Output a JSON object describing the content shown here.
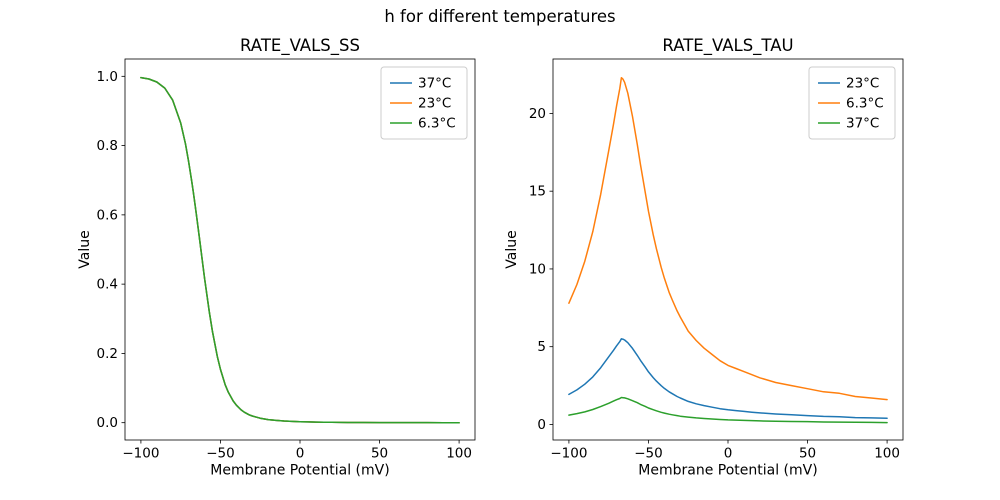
{
  "figure": {
    "suptitle": "h for different temperatures",
    "background": "#ffffff"
  },
  "colors": {
    "series_blue": "#1f77b4",
    "series_orange": "#ff7f0e",
    "series_green": "#2ca02c",
    "axis": "#000000",
    "legend_border": "#cccccc"
  },
  "chart_data": [
    {
      "type": "line",
      "title": "RATE_VALS_SS",
      "xlabel": "Membrane Potential (mV)",
      "ylabel": "Value",
      "xlim": [
        -110,
        110
      ],
      "ylim": [
        -0.05,
        1.05
      ],
      "xticks": [
        -100,
        -50,
        0,
        50,
        100
      ],
      "xtick_labels": [
        "−100",
        "−50",
        "0",
        "50",
        "100"
      ],
      "yticks": [
        0.0,
        0.2,
        0.4,
        0.6,
        0.8,
        1.0
      ],
      "ytick_labels": [
        "0.0",
        "0.2",
        "0.4",
        "0.6",
        "0.8",
        "1.0"
      ],
      "grid": false,
      "legend_position": "upper right",
      "overlap_note": "All three temperature curves coincide exactly; the last-drawn green (6.3°C) curve is the visible one.",
      "x": [
        -100,
        -95,
        -90,
        -85,
        -80,
        -75,
        -72,
        -70,
        -68,
        -67,
        -66,
        -65,
        -63,
        -60,
        -57,
        -55,
        -52,
        -50,
        -47,
        -45,
        -42,
        -40,
        -37,
        -35,
        -32,
        -30,
        -25,
        -20,
        -15,
        -10,
        -5,
        0,
        5,
        10,
        15,
        20,
        30,
        40,
        50,
        60,
        70,
        80,
        90,
        100
      ],
      "series": [
        {
          "name": "37°C",
          "color": "#1f77b4",
          "values": [
            0.9963,
            0.9922,
            0.9836,
            0.966,
            0.931,
            0.8652,
            0.8046,
            0.7541,
            0.6957,
            0.6639,
            0.6306,
            0.5961,
            0.5249,
            0.4182,
            0.3199,
            0.2627,
            0.1913,
            0.1534,
            0.1095,
            0.0874,
            0.0626,
            0.0504,
            0.0369,
            0.0303,
            0.0229,
            0.0192,
            0.0128,
            0.009,
            0.0065,
            0.0048,
            0.0037,
            0.0028,
            0.0022,
            0.0017,
            0.0013,
            0.001,
            0.0006,
            0.0004,
            0.0002,
            0.0001,
            0.0001,
            0.0001,
            0.0,
            0.0
          ]
        },
        {
          "name": "23°C",
          "color": "#ff7f0e",
          "values": [
            0.9963,
            0.9922,
            0.9836,
            0.966,
            0.931,
            0.8652,
            0.8046,
            0.7541,
            0.6957,
            0.6639,
            0.6306,
            0.5961,
            0.5249,
            0.4182,
            0.3199,
            0.2627,
            0.1913,
            0.1534,
            0.1095,
            0.0874,
            0.0626,
            0.0504,
            0.0369,
            0.0303,
            0.0229,
            0.0192,
            0.0128,
            0.009,
            0.0065,
            0.0048,
            0.0037,
            0.0028,
            0.0022,
            0.0017,
            0.0013,
            0.001,
            0.0006,
            0.0004,
            0.0002,
            0.0001,
            0.0001,
            0.0001,
            0.0,
            0.0
          ]
        },
        {
          "name": "6.3°C",
          "color": "#2ca02c",
          "values": [
            0.9963,
            0.9922,
            0.9836,
            0.966,
            0.931,
            0.8652,
            0.8046,
            0.7541,
            0.6957,
            0.6639,
            0.6306,
            0.5961,
            0.5249,
            0.4182,
            0.3199,
            0.2627,
            0.1913,
            0.1534,
            0.1095,
            0.0874,
            0.0626,
            0.0504,
            0.0369,
            0.0303,
            0.0229,
            0.0192,
            0.0128,
            0.009,
            0.0065,
            0.0048,
            0.0037,
            0.0028,
            0.0022,
            0.0017,
            0.0013,
            0.001,
            0.0006,
            0.0004,
            0.0002,
            0.0001,
            0.0001,
            0.0001,
            0.0,
            0.0
          ]
        }
      ]
    },
    {
      "type": "line",
      "title": "RATE_VALS_TAU",
      "xlabel": "Membrane Potential (mV)",
      "ylabel": "Value",
      "xlim": [
        -110,
        110
      ],
      "ylim": [
        -1.0,
        23.5
      ],
      "xticks": [
        -100,
        -50,
        0,
        50,
        100
      ],
      "xtick_labels": [
        "−100",
        "−50",
        "0",
        "50",
        "100"
      ],
      "yticks": [
        0,
        5,
        10,
        15,
        20
      ],
      "ytick_labels": [
        "0",
        "5",
        "10",
        "15",
        "20"
      ],
      "grid": false,
      "legend_position": "upper right",
      "x": [
        -100,
        -95,
        -90,
        -85,
        -80,
        -75,
        -72,
        -70,
        -68,
        -67,
        -66,
        -65,
        -63,
        -60,
        -57,
        -55,
        -52,
        -50,
        -47,
        -45,
        -42,
        -40,
        -37,
        -35,
        -32,
        -30,
        -25,
        -20,
        -15,
        -10,
        -5,
        0,
        5,
        10,
        15,
        20,
        30,
        40,
        50,
        60,
        70,
        80,
        90,
        100
      ],
      "series": [
        {
          "name": "23°C",
          "color": "#1f77b4",
          "values": [
            1.93,
            2.22,
            2.59,
            3.06,
            3.65,
            4.35,
            4.77,
            5.06,
            5.33,
            5.51,
            5.48,
            5.43,
            5.26,
            4.89,
            4.44,
            4.12,
            3.68,
            3.38,
            3.01,
            2.79,
            2.49,
            2.32,
            2.1,
            1.98,
            1.8,
            1.7,
            1.48,
            1.33,
            1.21,
            1.11,
            1.01,
            0.94,
            0.89,
            0.84,
            0.79,
            0.74,
            0.67,
            0.62,
            0.57,
            0.52,
            0.49,
            0.44,
            0.42,
            0.4
          ]
        },
        {
          "name": "6.3°C",
          "color": "#ff7f0e",
          "values": [
            7.8,
            9.0,
            10.5,
            12.4,
            14.8,
            17.6,
            19.3,
            20.5,
            21.6,
            22.3,
            22.2,
            22.0,
            21.3,
            19.8,
            18.0,
            16.7,
            14.9,
            13.7,
            12.2,
            11.3,
            10.1,
            9.4,
            8.5,
            8.0,
            7.3,
            6.9,
            6.0,
            5.4,
            4.9,
            4.5,
            4.1,
            3.8,
            3.6,
            3.4,
            3.2,
            3.0,
            2.7,
            2.5,
            2.3,
            2.1,
            2.0,
            1.8,
            1.7,
            1.6
          ]
        },
        {
          "name": "37°C",
          "color": "#2ca02c",
          "values": [
            0.6,
            0.7,
            0.81,
            0.96,
            1.15,
            1.36,
            1.5,
            1.59,
            1.67,
            1.73,
            1.72,
            1.71,
            1.65,
            1.53,
            1.4,
            1.29,
            1.16,
            1.06,
            0.95,
            0.88,
            0.78,
            0.73,
            0.66,
            0.62,
            0.57,
            0.53,
            0.47,
            0.42,
            0.38,
            0.35,
            0.32,
            0.29,
            0.28,
            0.26,
            0.25,
            0.23,
            0.21,
            0.19,
            0.18,
            0.16,
            0.15,
            0.14,
            0.13,
            0.12
          ]
        }
      ]
    }
  ]
}
